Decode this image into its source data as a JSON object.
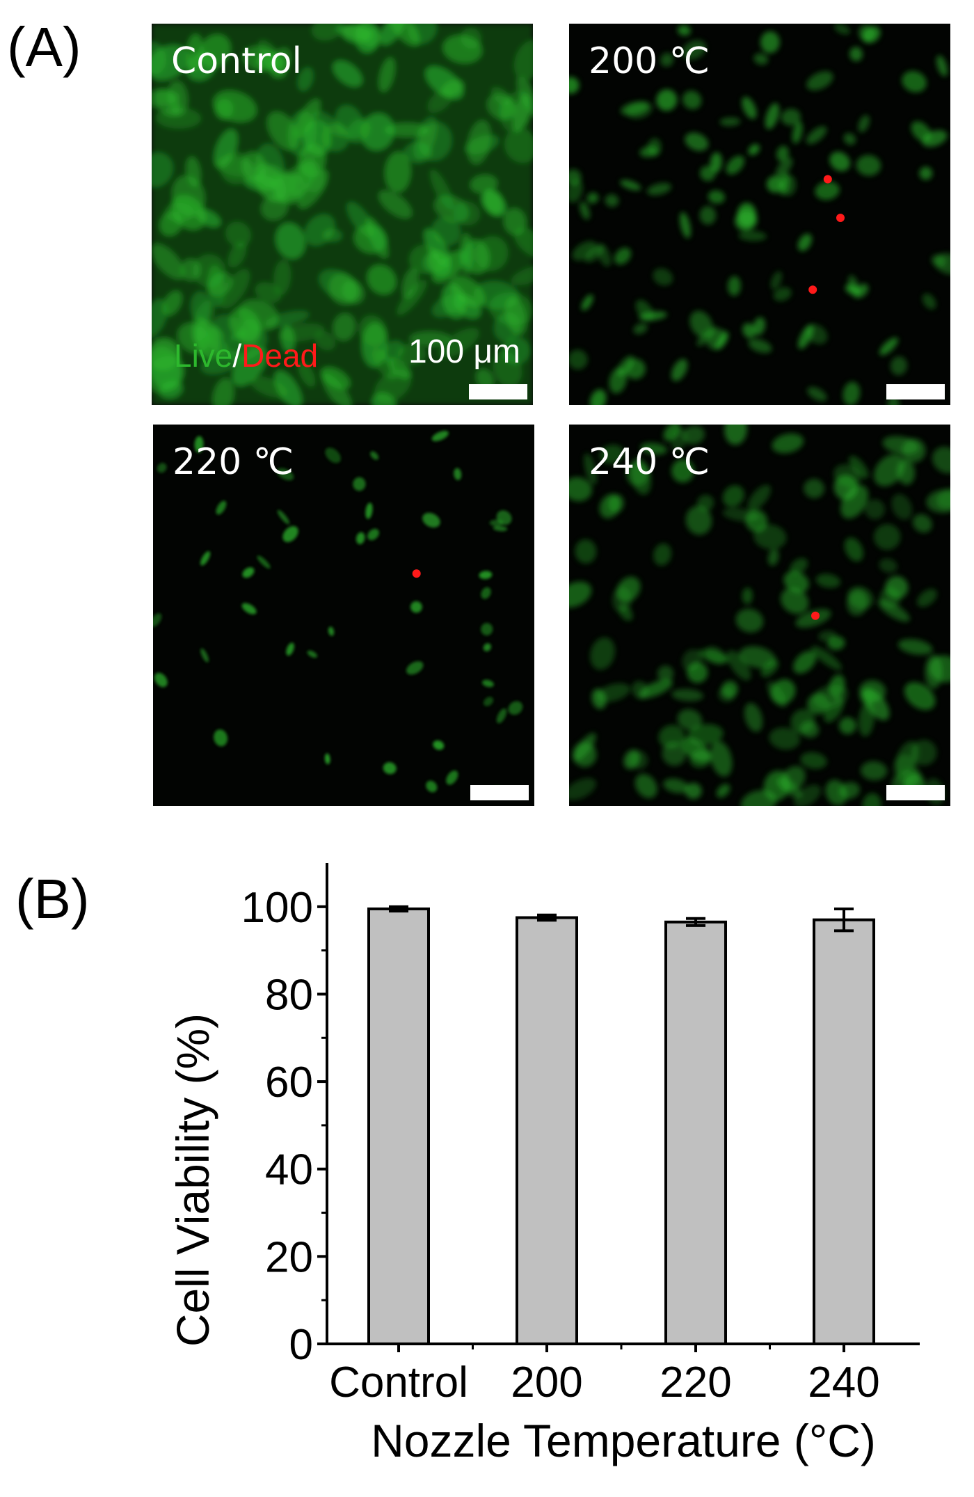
{
  "panel_a": {
    "letter": "(A)",
    "images": [
      {
        "label": "Control",
        "live_text": "Live",
        "sep_text": "/",
        "dead_text": "Dead",
        "scale_text": "100 μm"
      },
      {
        "label": "200 ℃"
      },
      {
        "label": "220 ℃"
      },
      {
        "label": "240 ℃"
      }
    ],
    "colors": {
      "live": "#2db82d",
      "dead": "#ff1a1a",
      "background": "#020402"
    }
  },
  "panel_b": {
    "letter": "(B)"
  },
  "chart_data": {
    "type": "bar",
    "categories": [
      "Control",
      "200",
      "220",
      "240"
    ],
    "values": [
      99.5,
      97.5,
      96.5,
      97.0
    ],
    "errors": [
      0.5,
      0.6,
      0.8,
      2.5
    ],
    "xlabel": "Nozzle Temperature (°C)",
    "ylabel": "Cell Viability (%)",
    "ylim": [
      0,
      110
    ],
    "yticks": [
      0,
      20,
      40,
      60,
      80,
      100
    ],
    "bar_color": "#c0c0c0",
    "grid": false,
    "legend": "none"
  }
}
